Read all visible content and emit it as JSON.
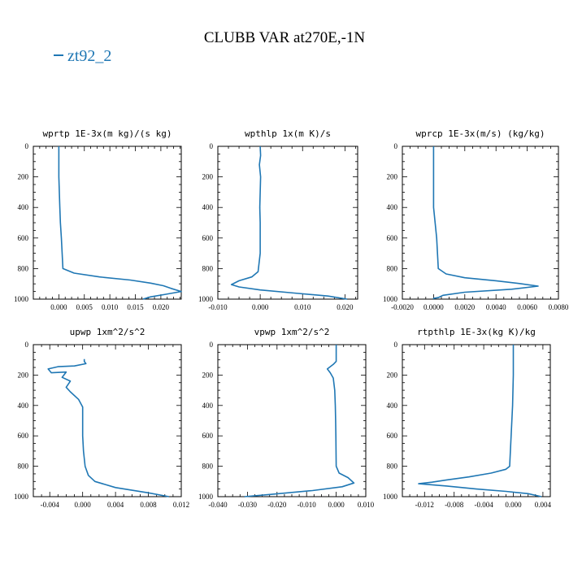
{
  "title": "CLUBB VAR at270E,-1N",
  "legend": {
    "series_name": "zt92_2",
    "color": "#1f77b4"
  },
  "chart_data": [
    {
      "type": "line",
      "title": "wprtp  1E-3x(m kg)/(s kg)",
      "xlim": [
        -0.005,
        0.024
      ],
      "ylim": [
        1000,
        0
      ],
      "xticks": [
        "0.000",
        "0.005",
        "0.010",
        "0.015",
        "0.020"
      ],
      "xtick_values": [
        0,
        0.005,
        0.01,
        0.015,
        0.02
      ],
      "yticks": [
        "0",
        "200",
        "400",
        "600",
        "800",
        "1000"
      ],
      "series": [
        {
          "name": "zt92_2",
          "color": "#1f77b4",
          "x": [
            0,
            0,
            0.0002,
            0.0003,
            0.0005,
            0.0008,
            0.003,
            0.008,
            0.014,
            0.018,
            0.0205,
            0.022,
            0.024,
            0.021,
            0.018,
            0.0165
          ],
          "y": [
            0,
            200,
            400,
            500,
            600,
            800,
            830,
            855,
            875,
            895,
            912,
            930,
            950,
            968,
            985,
            1000
          ]
        }
      ]
    },
    {
      "type": "line",
      "title": "wpthlp  1x(m K)/s",
      "xlim": [
        -0.01,
        0.023
      ],
      "ylim": [
        1000,
        0
      ],
      "xticks": [
        "-0.010",
        "0.000",
        "0.010",
        "0.020"
      ],
      "xtick_values": [
        -0.01,
        0,
        0.01,
        0.02
      ],
      "yticks": [
        "0",
        "200",
        "400",
        "600",
        "800",
        "1000"
      ],
      "series": [
        {
          "name": "zt92_2",
          "color": "#1f77b4",
          "x": [
            0,
            0.0001,
            -0.0002,
            0.0001,
            0,
            -0.0001,
            0,
            0,
            -0.0005,
            -0.002,
            -0.005,
            -0.0068,
            -0.005,
            0,
            0.008,
            0.016,
            0.0205
          ],
          "y": [
            0,
            60,
            120,
            200,
            300,
            400,
            500,
            700,
            820,
            855,
            880,
            905,
            920,
            940,
            960,
            980,
            1000
          ]
        }
      ]
    },
    {
      "type": "line",
      "title": "wprcp  1E-3x(m/s) (kg/kg)",
      "xlim": [
        -0.002,
        0.008
      ],
      "ylim": [
        1000,
        0
      ],
      "xticks": [
        "-0.0020",
        "0.0000",
        "0.0020",
        "0.0040",
        "0.0060",
        "0.0080"
      ],
      "xtick_values": [
        -0.002,
        0,
        0.002,
        0.004,
        0.006,
        0.008
      ],
      "yticks": [
        "0",
        "200",
        "400",
        "600",
        "800",
        "1000"
      ],
      "series": [
        {
          "name": "zt92_2",
          "color": "#1f77b4",
          "x": [
            0,
            0,
            0,
            0.0001,
            0.0002,
            0.0003,
            0.0008,
            0.002,
            0.004,
            0.0055,
            0.0067,
            0.005,
            0.002,
            0.0006,
            0.0003,
            0,
            0
          ],
          "y": [
            0,
            200,
            400,
            500,
            600,
            800,
            835,
            860,
            880,
            898,
            915,
            935,
            955,
            975,
            990,
            995,
            1000
          ]
        }
      ]
    },
    {
      "type": "line",
      "title": "upwp  1xm^2/s^2",
      "xlim": [
        -0.006,
        0.012
      ],
      "ylim": [
        1000,
        0
      ],
      "xticks": [
        "-0.004",
        "0.000",
        "0.004",
        "0.008",
        "0.012"
      ],
      "xtick_values": [
        -0.004,
        0,
        0.004,
        0.008,
        0.012
      ],
      "yticks": [
        "0",
        "200",
        "400",
        "600",
        "800",
        "1000"
      ],
      "series": [
        {
          "name": "zt92_2",
          "color": "#1f77b4",
          "x": [
            0.0002,
            0.0002,
            0.0004,
            -0.001,
            -0.003,
            -0.0042,
            -0.0038,
            -0.002,
            -0.0025,
            -0.0015,
            -0.002,
            -0.0015,
            -0.0005,
            0,
            0,
            0,
            0.0001,
            0.0003,
            0.0007,
            0.0015,
            0.004,
            0.008,
            0.0105
          ],
          "y": [
            95,
            110,
            125,
            140,
            145,
            160,
            185,
            180,
            215,
            240,
            280,
            310,
            360,
            410,
            500,
            600,
            700,
            800,
            860,
            900,
            940,
            975,
            1000
          ]
        }
      ]
    },
    {
      "type": "line",
      "title": "vpwp  1xm^2/s^2",
      "xlim": [
        -0.04,
        0.01
      ],
      "ylim": [
        1000,
        0
      ],
      "xticks": [
        "-0.040",
        "-0.030",
        "-0.020",
        "-0.010",
        "0.000",
        "0.010"
      ],
      "xtick_values": [
        -0.04,
        -0.03,
        -0.02,
        -0.01,
        0,
        0.01
      ],
      "yticks": [
        "0",
        "200",
        "400",
        "600",
        "800",
        "1000"
      ],
      "series": [
        {
          "name": "zt92_2",
          "color": "#1f77b4",
          "x": [
            0,
            0,
            -0.001,
            -0.003,
            -0.002,
            -0.001,
            -0.0005,
            -0.0003,
            -0.0002,
            -0.0001,
            0,
            0.001,
            0.004,
            0.006,
            0.002,
            -0.008,
            -0.022,
            -0.031
          ],
          "y": [
            0,
            110,
            130,
            160,
            185,
            220,
            300,
            400,
            500,
            600,
            800,
            845,
            875,
            910,
            935,
            960,
            985,
            1000
          ]
        }
      ]
    },
    {
      "type": "line",
      "title": "rtpthlp  1E-3x(kg K)/kg",
      "xlim": [
        -0.015,
        0.005
      ],
      "ylim": [
        1000,
        0
      ],
      "xticks": [
        "-0.012",
        "-0.008",
        "-0.004",
        "0.000",
        "0.004"
      ],
      "xtick_values": [
        -0.012,
        -0.008,
        -0.004,
        0,
        0.004
      ],
      "yticks": [
        "0",
        "200",
        "400",
        "600",
        "800",
        "1000"
      ],
      "series": [
        {
          "name": "zt92_2",
          "color": "#1f77b4",
          "x": [
            0,
            0,
            -0.0001,
            -0.0003,
            -0.0005,
            -0.001,
            -0.003,
            -0.006,
            -0.009,
            -0.011,
            -0.0128,
            -0.009,
            -0.005,
            -0.001,
            0.002,
            0.0038
          ],
          "y": [
            0,
            200,
            400,
            600,
            800,
            820,
            845,
            870,
            890,
            905,
            915,
            930,
            950,
            965,
            980,
            1000
          ]
        }
      ]
    }
  ]
}
